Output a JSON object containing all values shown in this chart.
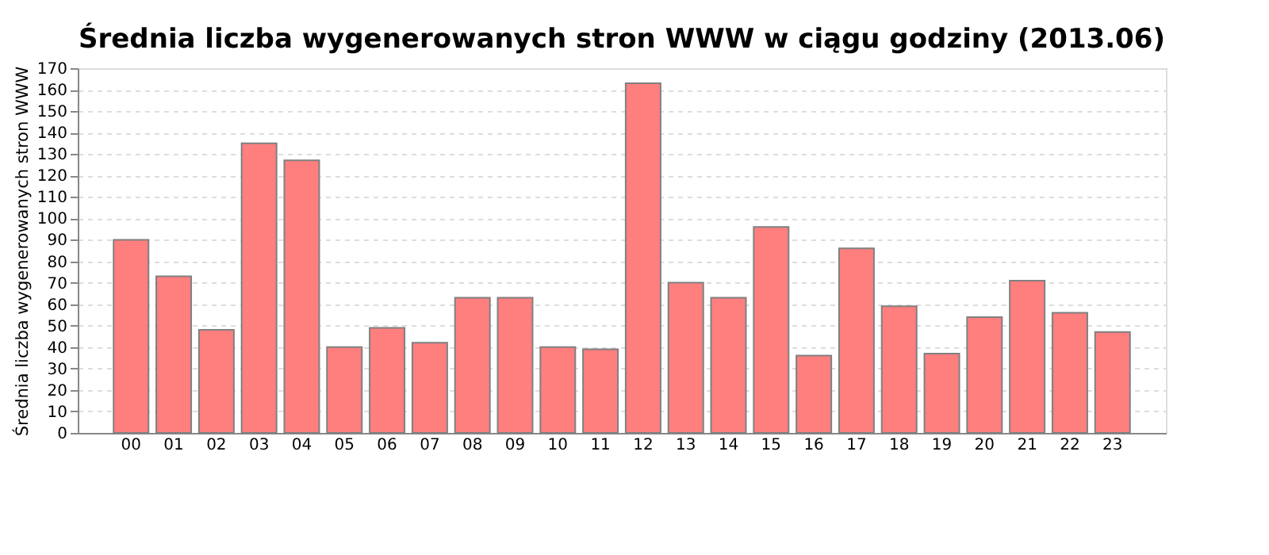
{
  "chart_data": {
    "type": "bar",
    "title": "Średnia liczba wygenerowanych stron WWW w ciągu godziny (2013.06)",
    "ylabel": "Średnia liczba wygenerowanych stron WWW",
    "categories": [
      "00",
      "01",
      "02",
      "03",
      "04",
      "05",
      "06",
      "07",
      "08",
      "09",
      "10",
      "11",
      "12",
      "13",
      "14",
      "15",
      "16",
      "17",
      "18",
      "19",
      "20",
      "21",
      "22",
      "23"
    ],
    "values": [
      90,
      73,
      48,
      135,
      127,
      40,
      49,
      42,
      63,
      63,
      40,
      39,
      163,
      70,
      63,
      96,
      36,
      86,
      59,
      37,
      54,
      71,
      56,
      47
    ],
    "color": "#ff7f7f",
    "ylim": [
      0,
      170
    ],
    "yticks": [
      0,
      10,
      20,
      30,
      40,
      50,
      60,
      70,
      80,
      90,
      100,
      110,
      120,
      130,
      140,
      150,
      160,
      170
    ],
    "grid": "y"
  }
}
